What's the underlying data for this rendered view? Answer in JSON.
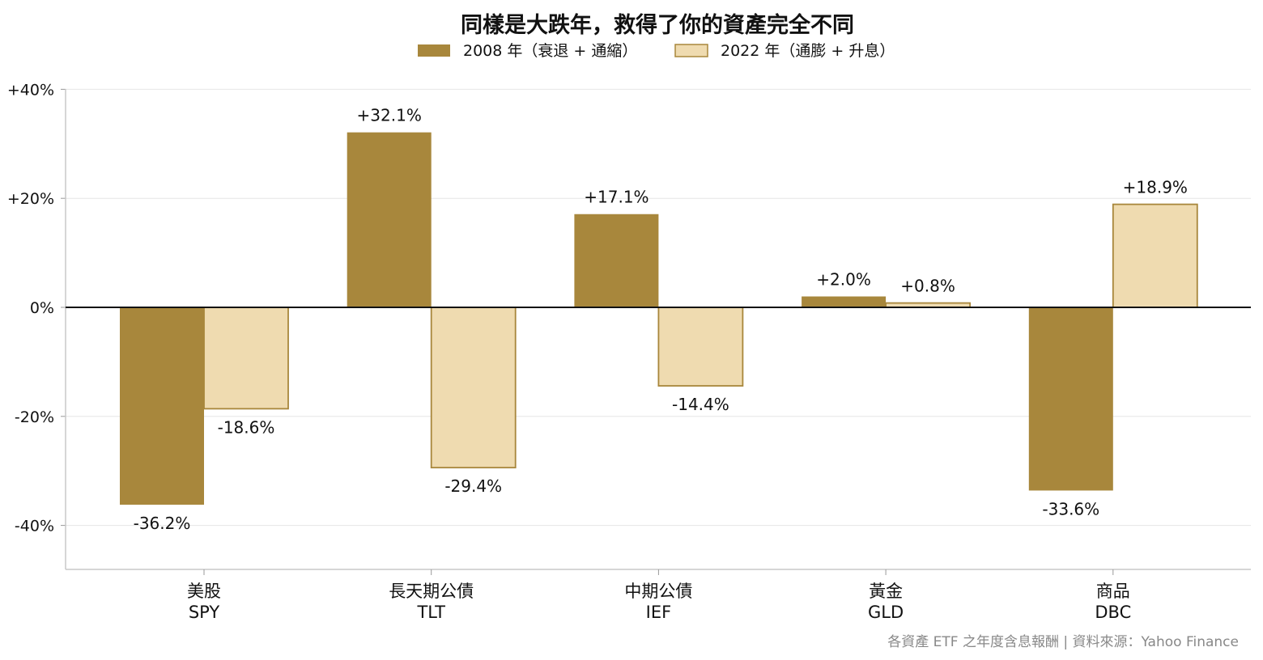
{
  "chart_data": {
    "type": "bar",
    "title": "同樣是大跌年，救得了你的資產完全不同",
    "categories": [
      {
        "name": "美股",
        "ticker": "SPY"
      },
      {
        "name": "長天期公債",
        "ticker": "TLT"
      },
      {
        "name": "中期公債",
        "ticker": "IEF"
      },
      {
        "name": "黃金",
        "ticker": "GLD"
      },
      {
        "name": "商品",
        "ticker": "DBC"
      }
    ],
    "series": [
      {
        "name": "2008 年（衰退 + 通縮）",
        "color": "#a8873c",
        "values": [
          -36.2,
          32.1,
          17.1,
          2.0,
          -33.6
        ],
        "labels": [
          "-36.2%",
          "+32.1%",
          "+17.1%",
          "+2.0%",
          "-33.6%"
        ]
      },
      {
        "name": "2022 年（通膨 + 升息）",
        "color": "#efdbb0",
        "edge": "#a8873c",
        "values": [
          -18.6,
          -29.4,
          -14.4,
          0.8,
          18.9
        ],
        "labels": [
          "-18.6%",
          "-29.4%",
          "-14.4%",
          "+0.8%",
          "+18.9%"
        ]
      }
    ],
    "ylim": [
      -48,
      40
    ],
    "yticks": [
      40,
      20,
      0,
      -20,
      -40
    ],
    "ytick_labels": [
      "+40%",
      "+20%",
      "0%",
      "-20%",
      "-40%"
    ],
    "grid": true,
    "legend": "top-center",
    "source": "各資產 ETF 之年度含息報酬 | 資料來源：Yahoo Finance"
  }
}
